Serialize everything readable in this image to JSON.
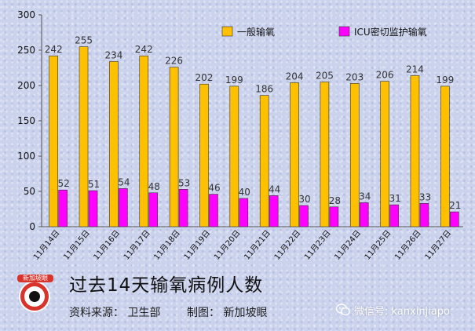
{
  "chart_data": {
    "type": "bar",
    "categories": [
      "11月14日",
      "11月15日",
      "11月16日",
      "11月17日",
      "11月18日",
      "11月19日",
      "11月20日",
      "11月21日",
      "11月22日",
      "11月23日",
      "11月24日",
      "11月25日",
      "11月26日",
      "11月27日"
    ],
    "series": [
      {
        "name": "一般输氧",
        "color": "#ffc000",
        "values": [
          242,
          255,
          234,
          242,
          226,
          202,
          199,
          186,
          204,
          205,
          203,
          206,
          214,
          199
        ]
      },
      {
        "name": "ICU密切监护输氧",
        "color": "#ff00ff",
        "values": [
          52,
          51,
          54,
          48,
          53,
          46,
          40,
          44,
          30,
          28,
          34,
          31,
          33,
          21
        ]
      }
    ],
    "ylim": [
      0,
      300
    ],
    "yticks": [
      0,
      50,
      100,
      150,
      200,
      250,
      300
    ],
    "grid": false,
    "legend": "top-right",
    "xlabel": "",
    "ylabel": ""
  },
  "footer": {
    "title": "过去14天输氧病例人数",
    "source": "资料来源：  卫生部",
    "maker": "制图：  新加坡眼",
    "logo_text": "新加坡眼",
    "wechat": "微信号: kanxinjiapo"
  },
  "icons": {
    "logo": "eye-logo-icon",
    "wechat": "wechat-icon"
  }
}
